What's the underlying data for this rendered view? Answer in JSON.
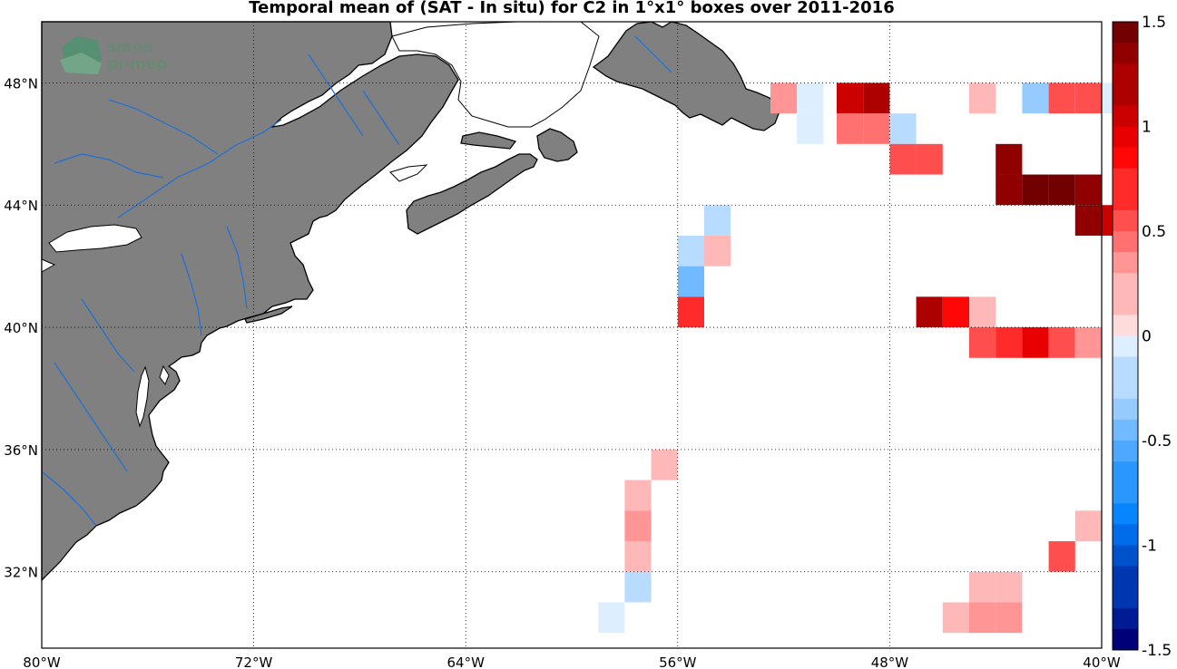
{
  "title": "Temporal mean of (SAT - In situ) for C2 in 1°x1° boxes over 2011-2016",
  "watermark": {
    "line1": "smos",
    "line2": "pi-mep"
  },
  "colors": {
    "land": "#808080",
    "coast": "#000000",
    "river": "#1f6fd6"
  },
  "chart_data": {
    "type": "heatmap",
    "title": "Temporal mean of (SAT - In situ) for C2 in 1°x1° boxes over 2011-2016",
    "xlim": [
      -80,
      -40
    ],
    "ylim": [
      29.5,
      50
    ],
    "x_ticks": [
      -80,
      -72,
      -64,
      -56,
      -48,
      -40
    ],
    "x_tick_labels": [
      "80°W",
      "72°W",
      "64°W",
      "56°W",
      "48°W",
      "40°W"
    ],
    "y_ticks": [
      32,
      36,
      40,
      44,
      48
    ],
    "y_tick_labels": [
      "32°N",
      "36°N",
      "40°N",
      "44°N",
      "48°N"
    ],
    "grid": true,
    "colorbar": {
      "range": [
        -1.5,
        1.5
      ],
      "ticks": [
        1.5,
        1,
        0.5,
        0,
        -0.5,
        -1,
        -1.5
      ],
      "tick_labels": [
        "1.5",
        "1",
        "0.5",
        "0",
        "-0.5",
        "-1",
        "-1.5"
      ]
    },
    "cells": [
      {
        "lon": -52.0,
        "lat": 47.5,
        "value": 0.3
      },
      {
        "lon": -51.0,
        "lat": 47.5,
        "value": -0.1
      },
      {
        "lon": -51.0,
        "lat": 46.5,
        "value": -0.1
      },
      {
        "lon": -49.5,
        "lat": 47.5,
        "value": 1.1
      },
      {
        "lon": -48.5,
        "lat": 47.5,
        "value": 1.2
      },
      {
        "lon": -49.5,
        "lat": 46.5,
        "value": 0.4
      },
      {
        "lon": -48.5,
        "lat": 46.5,
        "value": 0.4
      },
      {
        "lon": -47.5,
        "lat": 46.5,
        "value": -0.2
      },
      {
        "lon": -47.5,
        "lat": 45.5,
        "value": 0.6
      },
      {
        "lon": -46.5,
        "lat": 45.5,
        "value": 0.6
      },
      {
        "lon": -44.5,
        "lat": 47.5,
        "value": 0.2
      },
      {
        "lon": -42.5,
        "lat": 47.5,
        "value": -0.3
      },
      {
        "lon": -41.5,
        "lat": 47.5,
        "value": 0.55
      },
      {
        "lon": -40.5,
        "lat": 47.5,
        "value": 0.55
      },
      {
        "lon": -39.5,
        "lat": 47.5,
        "value": -0.1
      },
      {
        "lon": -43.5,
        "lat": 45.5,
        "value": 1.3
      },
      {
        "lon": -43.5,
        "lat": 44.5,
        "value": 1.3
      },
      {
        "lon": -42.5,
        "lat": 44.5,
        "value": 1.45
      },
      {
        "lon": -41.5,
        "lat": 44.5,
        "value": 1.45
      },
      {
        "lon": -40.5,
        "lat": 44.5,
        "value": 1.3
      },
      {
        "lon": -40.5,
        "lat": 43.5,
        "value": 1.3
      },
      {
        "lon": -39.5,
        "lat": 43.5,
        "value": 1.1
      },
      {
        "lon": -54.5,
        "lat": 43.5,
        "value": -0.2
      },
      {
        "lon": -55.5,
        "lat": 42.5,
        "value": -0.2
      },
      {
        "lon": -54.5,
        "lat": 42.5,
        "value": 0.2
      },
      {
        "lon": -55.5,
        "lat": 41.5,
        "value": -0.5
      },
      {
        "lon": -55.5,
        "lat": 40.5,
        "value": 0.75
      },
      {
        "lon": -46.5,
        "lat": 40.5,
        "value": 1.25
      },
      {
        "lon": -45.5,
        "lat": 40.5,
        "value": 0.8
      },
      {
        "lon": -44.5,
        "lat": 40.5,
        "value": 0.2
      },
      {
        "lon": -44.5,
        "lat": 39.5,
        "value": 0.6
      },
      {
        "lon": -43.5,
        "lat": 39.5,
        "value": 0.75
      },
      {
        "lon": -42.5,
        "lat": 39.5,
        "value": 0.95
      },
      {
        "lon": -41.5,
        "lat": 39.5,
        "value": 0.6
      },
      {
        "lon": -40.5,
        "lat": 39.5,
        "value": 0.3
      },
      {
        "lon": -56.5,
        "lat": 35.5,
        "value": 0.2
      },
      {
        "lon": -57.5,
        "lat": 34.5,
        "value": 0.2
      },
      {
        "lon": -57.5,
        "lat": 33.5,
        "value": 0.35
      },
      {
        "lon": -57.5,
        "lat": 32.5,
        "value": 0.2
      },
      {
        "lon": -57.5,
        "lat": 31.5,
        "value": -0.15
      },
      {
        "lon": -58.5,
        "lat": 30.5,
        "value": -0.1
      },
      {
        "lon": -40.5,
        "lat": 33.5,
        "value": 0.2
      },
      {
        "lon": -41.5,
        "lat": 32.5,
        "value": 0.55
      },
      {
        "lon": -44.5,
        "lat": 31.5,
        "value": 0.2
      },
      {
        "lon": -43.5,
        "lat": 31.5,
        "value": 0.2
      },
      {
        "lon": -45.5,
        "lat": 30.5,
        "value": 0.2
      },
      {
        "lon": -44.5,
        "lat": 30.5,
        "value": 0.3
      },
      {
        "lon": -43.5,
        "lat": 30.5,
        "value": 0.3
      }
    ]
  }
}
